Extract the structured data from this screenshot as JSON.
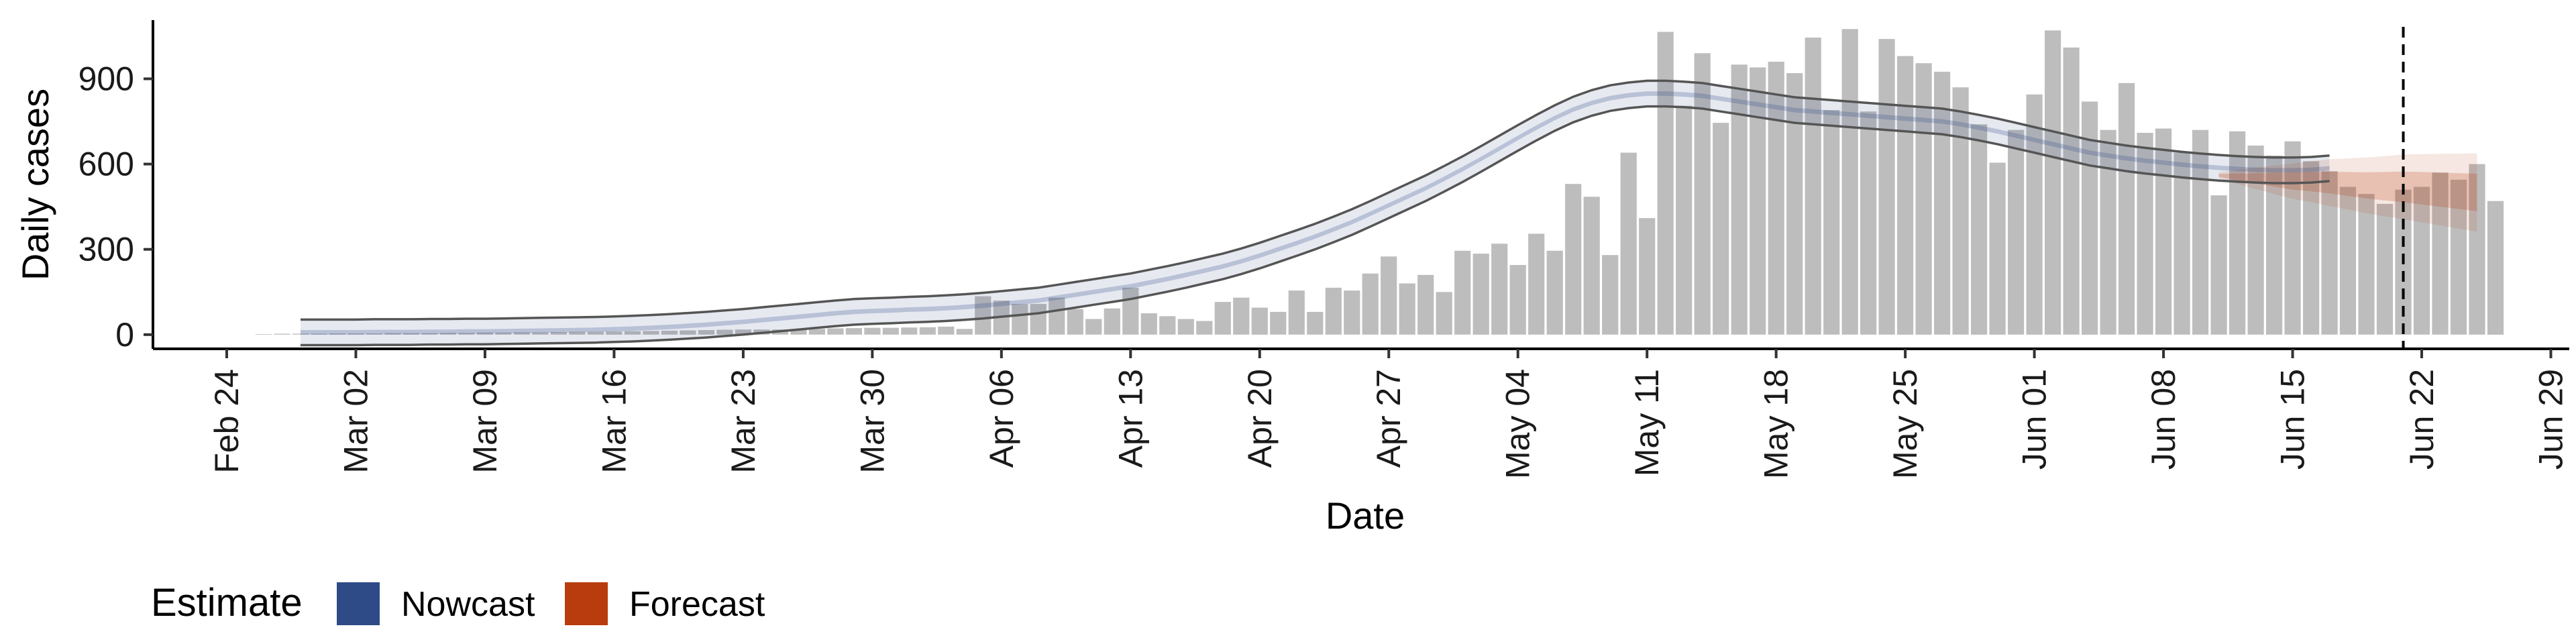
{
  "chart_data": {
    "type": "bar",
    "xlabel": "Date",
    "ylabel": "Daily cases",
    "x_range": [
      "2020-02-20",
      "2020-06-30"
    ],
    "ylim": [
      -50,
      1130
    ],
    "y_ticks": [
      0,
      300,
      600,
      900
    ],
    "x_ticks": [
      {
        "date": "2020-02-24",
        "label": "Feb 24"
      },
      {
        "date": "2020-03-02",
        "label": "Mar 02"
      },
      {
        "date": "2020-03-09",
        "label": "Mar 09"
      },
      {
        "date": "2020-03-16",
        "label": "Mar 16"
      },
      {
        "date": "2020-03-23",
        "label": "Mar 23"
      },
      {
        "date": "2020-03-30",
        "label": "Mar 30"
      },
      {
        "date": "2020-04-06",
        "label": "Apr 06"
      },
      {
        "date": "2020-04-13",
        "label": "Apr 13"
      },
      {
        "date": "2020-04-20",
        "label": "Apr 20"
      },
      {
        "date": "2020-04-27",
        "label": "Apr 27"
      },
      {
        "date": "2020-05-04",
        "label": "May 04"
      },
      {
        "date": "2020-05-11",
        "label": "May 11"
      },
      {
        "date": "2020-05-18",
        "label": "May 18"
      },
      {
        "date": "2020-05-25",
        "label": "May 25"
      },
      {
        "date": "2020-06-01",
        "label": "Jun 01"
      },
      {
        "date": "2020-06-08",
        "label": "Jun 08"
      },
      {
        "date": "2020-06-15",
        "label": "Jun 15"
      },
      {
        "date": "2020-06-22",
        "label": "Jun 22"
      },
      {
        "date": "2020-06-29",
        "label": "Jun 29"
      }
    ],
    "bars": {
      "start_date": "2020-02-26",
      "values": [
        2,
        3,
        3,
        3,
        4,
        4,
        4,
        5,
        5,
        5,
        6,
        6,
        7,
        7,
        8,
        8,
        9,
        10,
        10,
        11,
        12,
        13,
        14,
        15,
        16,
        17,
        18,
        18,
        18,
        20,
        20,
        22,
        23,
        24,
        24,
        25,
        26,
        28,
        20,
        135,
        120,
        108,
        108,
        130,
        90,
        55,
        92,
        165,
        75,
        65,
        55,
        48,
        115,
        130,
        95,
        80,
        155,
        80,
        165,
        155,
        215,
        275,
        180,
        210,
        150,
        295,
        285,
        320,
        245,
        355,
        295,
        530,
        485,
        280,
        640,
        410,
        1065,
        805,
        990,
        745,
        950,
        940,
        960,
        920,
        1045,
        790,
        1075,
        785,
        1040,
        980,
        955,
        925,
        870,
        740,
        605,
        720,
        845,
        1070,
        1010,
        820,
        720,
        885,
        710,
        725,
        640,
        720,
        490,
        715,
        665,
        630,
        680,
        610,
        575,
        520,
        495,
        460,
        510,
        520,
        570,
        545,
        600,
        470
      ]
    },
    "nowcast": {
      "start_date": "2020-02-28",
      "center": [
        8,
        8,
        8,
        8,
        9,
        9,
        9,
        10,
        10,
        11,
        11,
        12,
        13,
        14,
        15,
        16,
        17,
        19,
        21,
        24,
        27,
        31,
        35,
        40,
        45,
        51,
        57,
        63,
        69,
        75,
        80,
        83,
        85,
        88,
        90,
        93,
        97,
        102,
        108,
        114,
        120,
        130,
        140,
        150,
        160,
        170,
        183,
        196,
        210,
        225,
        240,
        258,
        278,
        300,
        322,
        345,
        370,
        396,
        425,
        455,
        485,
        515,
        548,
        582,
        618,
        655,
        692,
        728,
        762,
        792,
        815,
        832,
        842,
        848,
        848,
        845,
        840,
        830,
        820,
        810,
        800,
        790,
        785,
        780,
        775,
        770,
        765,
        760,
        755,
        750,
        740,
        728,
        715,
        700,
        685,
        670,
        655,
        640,
        630,
        620,
        612,
        605,
        598,
        592,
        587,
        583,
        580,
        578,
        578,
        580,
        585
      ],
      "inner_halfwidth": 8,
      "outer_halfwidth": 45
    },
    "forecast": {
      "start_date": "2020-06-11",
      "end_date": "2020-06-25",
      "center": [
        560,
        555,
        550,
        545,
        540,
        538,
        535,
        530,
        525,
        522,
        520,
        515,
        510,
        505,
        500
      ],
      "inner_halfwidth": [
        5,
        12,
        18,
        24,
        30,
        34,
        38,
        42,
        46,
        50,
        54,
        57,
        60,
        63,
        66
      ],
      "outer_halfwidth": [
        10,
        25,
        38,
        50,
        62,
        72,
        82,
        90,
        98,
        106,
        114,
        120,
        126,
        132,
        138
      ]
    },
    "vline_date": "2020-06-21",
    "legend": {
      "title": "Estimate",
      "items": [
        {
          "label": "Nowcast",
          "color": "#2E4A87"
        },
        {
          "label": "Forecast",
          "color": "#B83C0E"
        }
      ]
    },
    "colors": {
      "bar": "#BDBDBD",
      "nowcast_band": "#2E4A87",
      "forecast_band": "#B83C0E",
      "line": "#555555",
      "axis": "#000000"
    }
  }
}
